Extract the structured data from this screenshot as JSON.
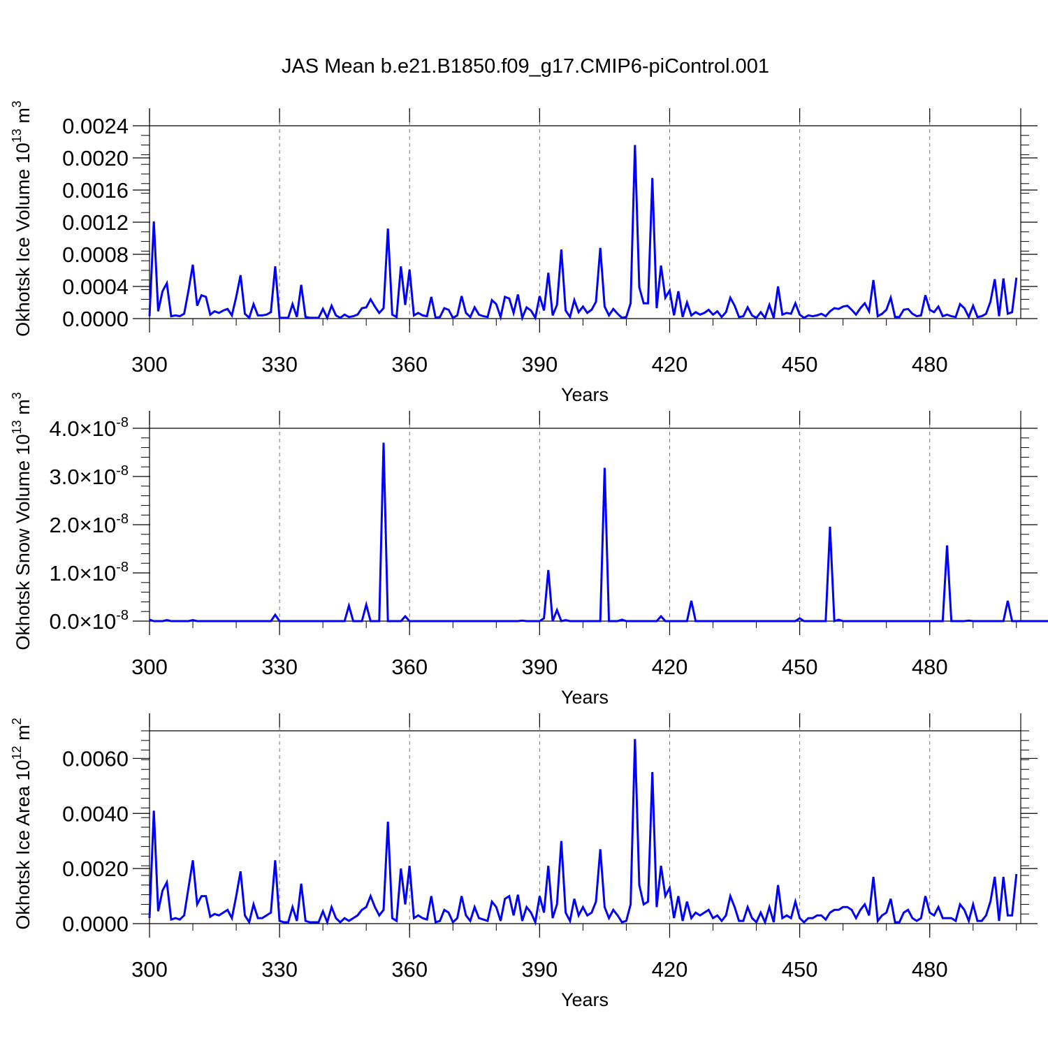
{
  "title": "JAS Mean b.e21.B1850.f09_g17.CMIP6-piControl.001",
  "line_color": "#0000ff",
  "chart_data": [
    {
      "type": "line",
      "xlabel": "Years",
      "ylabel": "Okhotsk Ice Volume 10",
      "ylabel_exp": "13",
      "ylabel_unit": " m",
      "ylabel_unit_exp": "3",
      "xlim": [
        300,
        501
      ],
      "ylim": [
        0,
        0.0024
      ],
      "xticks": [
        300,
        330,
        360,
        390,
        420,
        450,
        480
      ],
      "yticks": [
        0,
        0.0004,
        0.0008,
        0.0012,
        0.0016,
        0.002,
        0.0024
      ],
      "ytick_labels": [
        "0.0000",
        "0.0004",
        "0.0008",
        "0.0012",
        "0.0016",
        "0.0020",
        "0.0024"
      ],
      "grid_x": true,
      "series": [
        {
          "x_start": 300,
          "values": [
            3e-05,
            0.00121,
            9e-05,
            0.00034,
            0.00044,
            3e-05,
            4e-05,
            3e-05,
            6e-05,
            0.00035,
            0.00067,
            0.00016,
            0.00029,
            0.00027,
            5e-05,
            9e-05,
            7e-05,
            0.0001,
            0.00012,
            4e-05,
            0.00027,
            0.00054,
            6e-05,
            1e-05,
            0.00018,
            4e-05,
            4e-05,
            5e-05,
            8e-05,
            0.00065,
            1e-05,
            1e-05,
            1e-05,
            0.00018,
            2e-05,
            0.00042,
            2e-05,
            1e-05,
            1e-05,
            1e-05,
            0.00012,
            1e-05,
            0.00016,
            4e-05,
            1e-05,
            5e-05,
            2e-05,
            3e-05,
            5e-05,
            0.00013,
            0.00014,
            0.00024,
            0.00015,
            7e-05,
            0.00013,
            0.00112,
            5e-05,
            2e-05,
            0.00065,
            0.00017,
            0.00061,
            4e-05,
            7e-05,
            4e-05,
            3e-05,
            0.00027,
            1e-05,
            2e-05,
            0.00013,
            0.00011,
            1e-05,
            4e-05,
            0.00028,
            7e-05,
            2e-05,
            0.00014,
            5e-05,
            3e-05,
            2e-05,
            0.00023,
            0.00018,
            2e-05,
            0.00027,
            0.00025,
            7e-05,
            0.0003,
            1e-05,
            0.00014,
            0.0001,
            1e-05,
            0.00028,
            0.0001,
            0.00057,
            4e-05,
            0.00017,
            0.00086,
            0.0001,
            2e-05,
            0.00023,
            8e-05,
            0.00015,
            7e-05,
            0.00011,
            0.00021,
            0.00088,
            0.00015,
            4e-05,
            0.00012,
            6e-05,
            1e-05,
            2e-05,
            0.00019,
            0.00216,
            0.00039,
            0.00019,
            0.00019,
            0.00175,
            0.00013,
            0.00066,
            0.00026,
            0.00035,
            4e-05,
            0.00034,
            2e-05,
            0.0002,
            4e-05,
            8e-05,
            5e-05,
            7e-05,
            0.00011,
            5e-05,
            9e-05,
            2e-05,
            8e-05,
            0.00026,
            0.00016,
            2e-05,
            3e-05,
            0.00014,
            4e-05,
            1e-05,
            8e-05,
            1e-05,
            0.00017,
            1e-05,
            0.0004,
            5e-05,
            7e-05,
            6e-05,
            0.00019,
            5e-05,
            1e-05,
            4e-05,
            3e-05,
            4e-05,
            6e-05,
            3e-05,
            9e-05,
            0.00013,
            0.00012,
            0.00015,
            0.00016,
            0.00011,
            5e-05,
            0.00013,
            0.00019,
            9e-05,
            0.00048,
            3e-05,
            6e-05,
            0.00011,
            0.00026,
            2e-05,
            2e-05,
            0.00011,
            0.00012,
            6e-05,
            3e-05,
            4e-05,
            0.00029,
            0.00011,
            8e-05,
            0.00015,
            3e-05,
            5e-05,
            3e-05,
            2e-05,
            0.00018,
            0.00013,
            2e-05,
            0.00016,
            2e-05,
            3e-05,
            6e-05,
            0.00021,
            0.00049,
            3e-05,
            0.0005,
            6e-05,
            8e-05,
            0.00051
          ]
        }
      ]
    },
    {
      "type": "line",
      "xlabel": "Years",
      "ylabel": "Okhotsk Snow Volume 10",
      "ylabel_exp": "13",
      "ylabel_unit": " m",
      "ylabel_unit_exp": "3",
      "xlim": [
        300,
        501
      ],
      "ylim": [
        0,
        4e-08
      ],
      "xticks": [
        300,
        330,
        360,
        390,
        420,
        450,
        480
      ],
      "yticks": [
        0,
        1e-08,
        2e-08,
        3e-08,
        4e-08
      ],
      "ytick_labels": [
        "0.0",
        "1.0",
        "2.0",
        "3.0",
        "4.0"
      ],
      "ytick_suffix": "×10",
      "ytick_suffix_exp": "-8",
      "grid_x": true,
      "series": [
        {
          "x_start": 300,
          "values": [
            3e-10,
            0,
            0,
            0,
            2e-10,
            0,
            0,
            0,
            0,
            0,
            2e-10,
            0,
            0,
            0,
            0,
            0,
            0,
            0,
            0,
            0,
            0,
            0,
            0,
            0,
            0,
            0,
            0,
            0,
            0,
            1.3e-09,
            0,
            0,
            0,
            0,
            0,
            0,
            0,
            0,
            0,
            0,
            0,
            0,
            0,
            0,
            0,
            0,
            3.2e-09,
            0,
            0,
            0,
            3.4e-09,
            0,
            0,
            0,
            3.7e-08,
            0,
            0,
            0,
            0,
            1e-09,
            0,
            0,
            0,
            0,
            0,
            0,
            0,
            0,
            0,
            0,
            0,
            0,
            0,
            0,
            0,
            0,
            0,
            0,
            0,
            0,
            0,
            0,
            0,
            0,
            0,
            0,
            1e-10,
            0,
            0,
            0,
            0,
            6e-10,
            1.06e-08,
            0,
            2.3e-09,
            0,
            2e-10,
            0,
            0,
            0,
            0,
            0,
            0,
            0,
            0,
            3.18e-08,
            0,
            0,
            0,
            3e-10,
            0,
            0,
            0,
            0,
            0,
            0,
            0,
            0,
            1e-09,
            0,
            0,
            0,
            0,
            0,
            0,
            4.2e-09,
            0,
            0,
            0,
            0,
            0,
            0,
            0,
            0,
            0,
            0,
            0,
            0,
            0,
            0,
            0,
            0,
            0,
            0,
            0,
            0,
            0,
            0,
            0,
            0,
            6e-10,
            0,
            0,
            0,
            0,
            0,
            0,
            1.96e-08,
            0,
            3e-10,
            0,
            0,
            0,
            0,
            0,
            0,
            0,
            0,
            0,
            0,
            0,
            0,
            0,
            0,
            0,
            0,
            0,
            0,
            0,
            0,
            0,
            0,
            0,
            0,
            1.57e-08,
            0,
            0,
            0,
            0,
            1e-10,
            0,
            0,
            0,
            0,
            0,
            0,
            0,
            0,
            4.2e-09,
            0,
            0,
            0,
            0,
            0,
            0,
            0,
            0,
            0,
            0,
            0,
            0,
            0,
            0,
            0,
            0,
            0,
            0,
            0,
            0,
            0,
            0,
            0,
            0,
            0
          ]
        }
      ]
    },
    {
      "type": "line",
      "xlabel": "Years",
      "ylabel": "Okhotsk Ice Area 10",
      "ylabel_exp": "12",
      "ylabel_unit": " m",
      "ylabel_unit_exp": "2",
      "xlim": [
        300,
        501
      ],
      "ylim": [
        0,
        0.007
      ],
      "xticks": [
        300,
        330,
        360,
        390,
        420,
        450,
        480
      ],
      "yticks": [
        0,
        0.002,
        0.004,
        0.006
      ],
      "ytick_labels": [
        "0.0000",
        "0.0020",
        "0.0040",
        "0.0060"
      ],
      "grid_x": true,
      "series": [
        {
          "x_start": 300,
          "values": [
            0.0002,
            0.0041,
            0.00045,
            0.0012,
            0.0015,
            0.00015,
            0.0002,
            0.00015,
            0.0003,
            0.0013,
            0.0023,
            0.0007,
            0.001,
            0.001,
            0.00025,
            0.00035,
            0.0003,
            0.0004,
            0.0005,
            0.0002,
            0.001,
            0.0019,
            0.0003,
            5e-05,
            0.0007,
            0.0002,
            0.0002,
            0.0003,
            0.0004,
            0.0023,
            0.0001,
            5e-05,
            5e-05,
            0.0006,
            0.0001,
            0.00145,
            0.0001,
            5e-05,
            5e-05,
            5e-05,
            0.00045,
            5e-05,
            0.0006,
            0.0002,
            5e-05,
            0.0002,
            0.0001,
            0.0002,
            0.0003,
            0.0005,
            0.0006,
            0.001,
            0.0006,
            0.0003,
            0.0005,
            0.0037,
            0.0002,
            0.0001,
            0.002,
            0.0007,
            0.0021,
            0.0002,
            0.0003,
            0.0002,
            0.00015,
            0.001,
            5e-05,
            0.0001,
            0.0005,
            0.0004,
            5e-05,
            0.0002,
            0.001,
            0.0003,
            0.0001,
            0.0006,
            0.0002,
            0.00015,
            0.0001,
            0.0008,
            0.0006,
            0.0001,
            0.0009,
            0.001,
            0.0003,
            0.00105,
            0.0001,
            0.0006,
            0.0004,
            5e-05,
            0.001,
            0.0004,
            0.0021,
            0.0002,
            0.0007,
            0.003,
            0.0004,
            0.0001,
            0.0009,
            0.0003,
            0.0006,
            0.0003,
            0.0004,
            0.0008,
            0.0027,
            0.0006,
            0.0002,
            0.0005,
            0.0003,
            5e-05,
            0.0001,
            0.0007,
            0.0067,
            0.0014,
            0.0007,
            0.0008,
            0.0055,
            0.0006,
            0.0021,
            0.001,
            0.0013,
            0.0002,
            0.001,
            0.0001,
            0.0008,
            0.0002,
            0.0004,
            0.0003,
            0.0004,
            0.0005,
            0.0002,
            0.0003,
            0.0001,
            0.0003,
            0.001,
            0.0006,
            0.0001,
            0.0001,
            0.0006,
            0.0002,
            5e-05,
            0.0004,
            5e-05,
            0.0006,
            5e-05,
            0.0014,
            0.0002,
            0.0003,
            0.0002,
            0.0008,
            0.0002,
            5e-05,
            0.0002,
            0.0002,
            0.0003,
            0.0003,
            0.00015,
            0.0004,
            0.0005,
            0.0005,
            0.0006,
            0.0006,
            0.0005,
            0.0002,
            0.0005,
            0.0007,
            0.0003,
            0.0017,
            0.0001,
            0.0003,
            0.0004,
            0.0009,
            5e-05,
            5e-05,
            0.0004,
            0.0005,
            0.0002,
            0.0001,
            0.0002,
            0.001,
            0.0004,
            0.0003,
            0.0006,
            0.0002,
            0.0002,
            0.0002,
            0.0001,
            0.0007,
            0.0005,
            0.0001,
            0.0007,
            0.0001,
            0.0001,
            0.0003,
            0.0008,
            0.0017,
            0.0001,
            0.0017,
            0.0003,
            0.0003,
            0.0018
          ]
        }
      ]
    }
  ]
}
